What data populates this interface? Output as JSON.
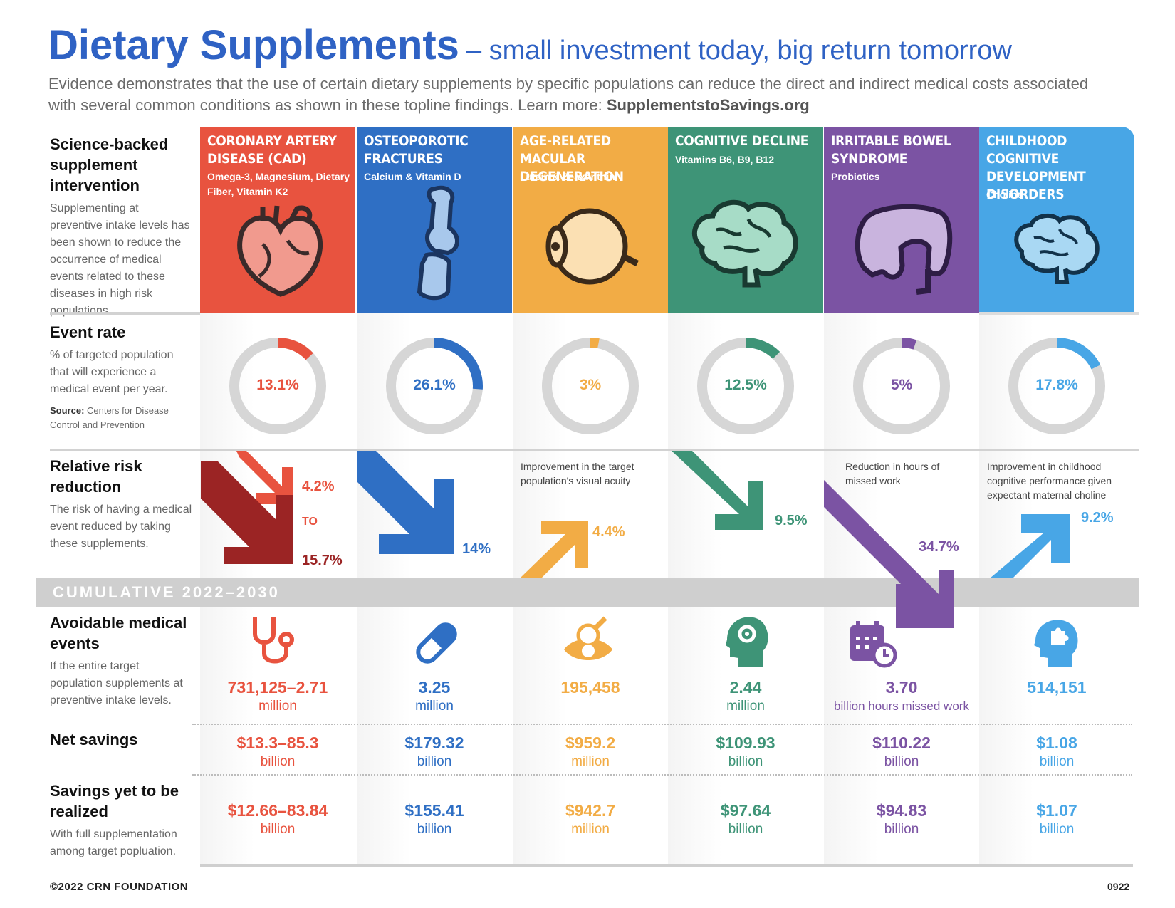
{
  "header": {
    "title": "Dietary Supplements",
    "subtitle": "– small investment today, big return tomorrow",
    "intro": "Evidence demonstrates that the use of certain dietary supplements by specific populations can reduce the direct and indirect medical costs associated with several common conditions as shown in these topline findings. Learn more: ",
    "site": "SupplementstoSavings.org"
  },
  "rows": {
    "intervention": {
      "heading": "Science-backed supplement intervention",
      "desc": "Supplementing at preventive intake levels has been shown to reduce the occurrence of medical events related to these diseases in high risk populations."
    },
    "event_rate": {
      "heading": "Event rate",
      "desc": "% of targeted population that will experience a medical event per year.",
      "source_label": "Source:",
      "source": "Centers for Disease Control and Prevention"
    },
    "risk": {
      "heading": "Relative risk reduction",
      "desc": "The risk of having a medical event reduced by taking these supplements."
    },
    "cumulative": "CUMULATIVE 2022–2030",
    "avoidable": {
      "heading": "Avoidable medical events",
      "desc": "If the entire target population supplements at preventive intake levels."
    },
    "net": {
      "heading": "Net savings"
    },
    "yet": {
      "heading": "Savings yet to be realized",
      "desc": "With full supplementation among target popluation."
    }
  },
  "columns": [
    {
      "name": "CORONARY ARTERY DISEASE (CAD)",
      "supplements": "Omega-3, Magnesium, Dietary Fiber, Vitamin K2",
      "color": "#e8533f",
      "icon": "heart-icon",
      "event_rate": 13.1,
      "event_label": "13.1%",
      "rr_low": "4.2%",
      "rr_to": "TO",
      "rr_high": "15.7%",
      "avoidable_icon": "stethoscope-icon",
      "avoidable": "731,125–2.71",
      "avoidable_unit": "million",
      "net": "$13.3–85.3",
      "net_unit": "billion",
      "yet": "$12.66–83.84",
      "yet_unit": "billion"
    },
    {
      "name": "OSTEOPOROTIC FRACTURES",
      "supplements": "Calcium & Vitamin D",
      "color": "#2f6fc4",
      "icon": "bone-joint-icon",
      "event_rate": 26.1,
      "event_label": "26.1%",
      "rr": "14%",
      "avoidable_icon": "pill-icon",
      "avoidable": "3.25",
      "avoidable_unit": "million",
      "net": "$179.32",
      "net_unit": "billion",
      "yet": "$155.41",
      "yet_unit": "billion"
    },
    {
      "name": "AGE-RELATED MACULAR DEGENERATION",
      "supplements": "Lutein & Zeaxanthin",
      "color": "#f2ac45",
      "icon": "eyeball-icon",
      "event_rate": 3,
      "event_label": "3%",
      "rr_note": "Improvement in the target population's visual acuity",
      "rr": "4.4%",
      "avoidable_icon": "eye-search-icon",
      "avoidable": "195,458",
      "avoidable_unit": "",
      "net": "$959.2",
      "net_unit": "million",
      "yet": "$942.7",
      "yet_unit": "million"
    },
    {
      "name": "COGNITIVE DECLINE",
      "supplements": "Vitamins B6, B9, B12",
      "color": "#3e9477",
      "icon": "brain-icon",
      "event_rate": 12.5,
      "event_label": "12.5%",
      "rr": "9.5%",
      "avoidable_icon": "head-gear-icon",
      "avoidable": "2.44",
      "avoidable_unit": "million",
      "net": "$109.93",
      "net_unit": "billion",
      "yet": "$97.64",
      "yet_unit": "billion"
    },
    {
      "name": "IRRITABLE BOWEL SYNDROME",
      "supplements": "Probiotics",
      "color": "#7b53a3",
      "icon": "intestine-icon",
      "event_rate": 5,
      "event_label": "5%",
      "rr_note": "Reduction in hours of missed work",
      "rr": "34.7%",
      "avoidable_icon": "calendar-clock-icon",
      "avoidable": "3.70",
      "avoidable_unit": "billion hours missed work",
      "net": "$110.22",
      "net_unit": "billion",
      "yet": "$94.83",
      "yet_unit": "billion"
    },
    {
      "name": "CHILDHOOD COGNITIVE DEVELOPMENT DISORDERS",
      "supplements": "Choline",
      "color": "#48a6e6",
      "icon": "brain-icon",
      "event_rate": 17.8,
      "event_label": "17.8%",
      "rr_note": "Improvement in childhood cognitive performance given expectant maternal choline",
      "rr": "9.2%",
      "avoidable_icon": "head-puzzle-icon",
      "avoidable": "514,151",
      "avoidable_unit": "",
      "net": "$1.08",
      "net_unit": "billion",
      "yet": "$1.07",
      "yet_unit": "billion"
    }
  ],
  "footer": {
    "copyright": "©2022 CRN FOUNDATION",
    "code": "0922"
  }
}
